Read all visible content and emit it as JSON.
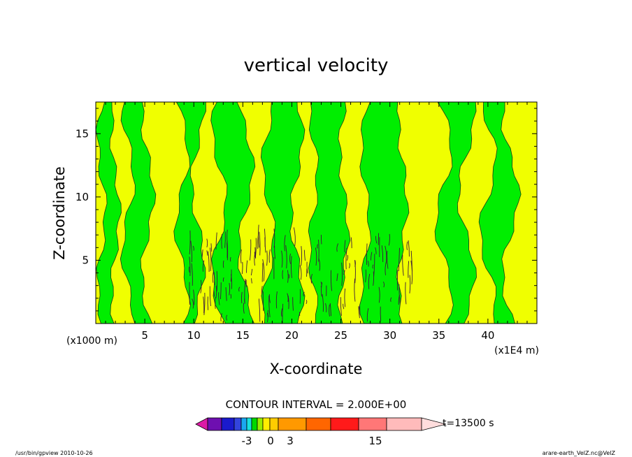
{
  "chart_data": {
    "type": "heatmap",
    "title": "vertical velocity",
    "xlabel": "X-coordinate",
    "ylabel": "Z-coordinate",
    "x_unit_left": "(x1000 m)",
    "x_unit_right": "(x1E4 m)",
    "xlim": [
      0,
      45
    ],
    "ylim": [
      0,
      17.5
    ],
    "xticks": [
      "5",
      "10",
      "15",
      "20",
      "25",
      "30",
      "35",
      "40"
    ],
    "xtick_values": [
      5,
      10,
      15,
      20,
      25,
      30,
      35,
      40
    ],
    "yticks": [
      "5",
      "10",
      "15"
    ],
    "ytick_values": [
      5,
      10,
      15
    ],
    "contour_interval_text": "CONTOUR INTERVAL = 2.000E+00",
    "time_label": "t=13500 s",
    "colorbar": {
      "colors": [
        "#dd1aa6",
        "#6e0fb0",
        "#1a1acc",
        "#3344dd",
        "#1aa8f0",
        "#18e0e0",
        "#00d800",
        "#99ee00",
        "#ffee00",
        "#ffcc00",
        "#ff9900",
        "#ff6600",
        "#ff1a1a",
        "#ff7777",
        "#ffbbbb",
        "#ffdddd"
      ],
      "tick_labels": [
        "-3",
        "0",
        "3",
        "15"
      ],
      "tick_values": [
        -3,
        0,
        3,
        15
      ]
    },
    "fill_colors": {
      "positive": "#f0ff00",
      "negative": "#00ee00"
    },
    "bands": [
      {
        "x": [
          0.0,
          0.6
        ],
        "sign": "+"
      },
      {
        "x": [
          0.6,
          2.0
        ],
        "sign": "-"
      },
      {
        "x": [
          2.0,
          3.3
        ],
        "sign": "+"
      },
      {
        "x": [
          3.3,
          5.3
        ],
        "sign": "-"
      },
      {
        "x": [
          5.3,
          8.8
        ],
        "sign": "+"
      },
      {
        "x": [
          8.8,
          10.4
        ],
        "sign": "-"
      },
      {
        "x": [
          10.4,
          12.6
        ],
        "sign": "+"
      },
      {
        "x": [
          12.6,
          15.3
        ],
        "sign": "-"
      },
      {
        "x": [
          15.3,
          17.6
        ],
        "sign": "+"
      },
      {
        "x": [
          17.6,
          20.5
        ],
        "sign": "-"
      },
      {
        "x": [
          20.5,
          22.2
        ],
        "sign": "+"
      },
      {
        "x": [
          22.2,
          25.3
        ],
        "sign": "-"
      },
      {
        "x": [
          25.3,
          27.5
        ],
        "sign": "+"
      },
      {
        "x": [
          27.5,
          31.3
        ],
        "sign": "-"
      },
      {
        "x": [
          31.3,
          35.5
        ],
        "sign": "+"
      },
      {
        "x": [
          35.5,
          37.8
        ],
        "sign": "-"
      },
      {
        "x": [
          37.8,
          40.0
        ],
        "sign": "+"
      },
      {
        "x": [
          40.0,
          42.3
        ],
        "sign": "-"
      },
      {
        "x": [
          42.3,
          45.0
        ],
        "sign": "+"
      }
    ]
  },
  "footer": {
    "left": "/usr/bin/gpview  2010-10-26",
    "right": "arare-earth_VelZ.nc@VelZ"
  }
}
